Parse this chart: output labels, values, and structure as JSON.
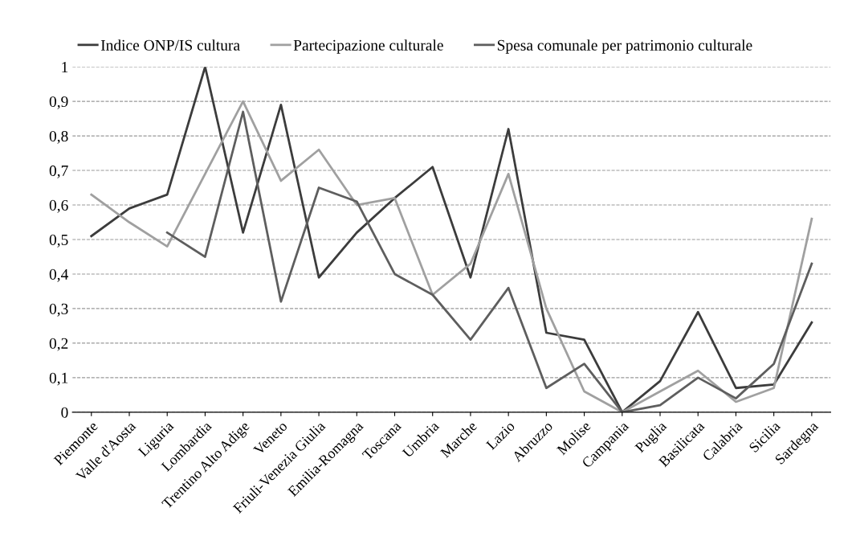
{
  "chart_data": {
    "type": "line",
    "categories": [
      "Piemonte",
      "Valle d'Aosta",
      "Liguria",
      "Lombardia",
      "Trentino Alto Adige",
      "Veneto",
      "Friuli-Venezia Giulia",
      "Emilia-Romagna",
      "Toscana",
      "Umbria",
      "Marche",
      "Lazio",
      "Abruzzo",
      "Molise",
      "Campania",
      "Puglia",
      "Basilicata",
      "Calabria",
      "Sicilia",
      "Sardegna"
    ],
    "series": [
      {
        "name": "Indice ONP/IS cultura",
        "color": "#3c3c3c",
        "values": [
          0.51,
          0.59,
          0.63,
          1.0,
          0.52,
          0.89,
          0.39,
          0.52,
          0.62,
          0.71,
          0.39,
          0.82,
          0.23,
          0.21,
          0.0,
          0.09,
          0.29,
          0.07,
          0.08,
          0.26
        ]
      },
      {
        "name": "Partecipazione culturale",
        "color": "#a0a0a0",
        "values": [
          0.63,
          0.55,
          0.48,
          0.69,
          0.9,
          0.67,
          0.76,
          0.6,
          0.62,
          0.34,
          0.43,
          0.69,
          0.3,
          0.06,
          0.0,
          0.06,
          0.12,
          0.03,
          0.07,
          0.56
        ]
      },
      {
        "name": "Spesa comunale per patrimonio culturale",
        "color": "#5e5e5e",
        "values": [
          null,
          null,
          0.52,
          0.45,
          0.87,
          0.32,
          0.65,
          0.61,
          0.4,
          0.34,
          0.21,
          0.36,
          0.07,
          0.14,
          0.0,
          0.02,
          0.1,
          0.04,
          0.14,
          0.43
        ]
      }
    ],
    "ylim": [
      0,
      1
    ],
    "yticks": [
      0,
      {
        "value": 0.1,
        "label": "0,1"
      },
      {
        "value": 0.2,
        "label": "0,2"
      },
      {
        "value": 0.3,
        "label": "0,3"
      },
      {
        "value": 0.4,
        "label": "0,4"
      },
      {
        "value": 0.5,
        "label": "0,5"
      },
      {
        "value": 0.6,
        "label": "0,6"
      },
      {
        "value": 0.7,
        "label": "0,7"
      },
      {
        "value": 0.8,
        "label": "0,8"
      },
      {
        "value": 0.9,
        "label": "0,9"
      },
      1
    ],
    "grid": "y",
    "legend": "top",
    "line_style": "solid",
    "marker": "none"
  }
}
